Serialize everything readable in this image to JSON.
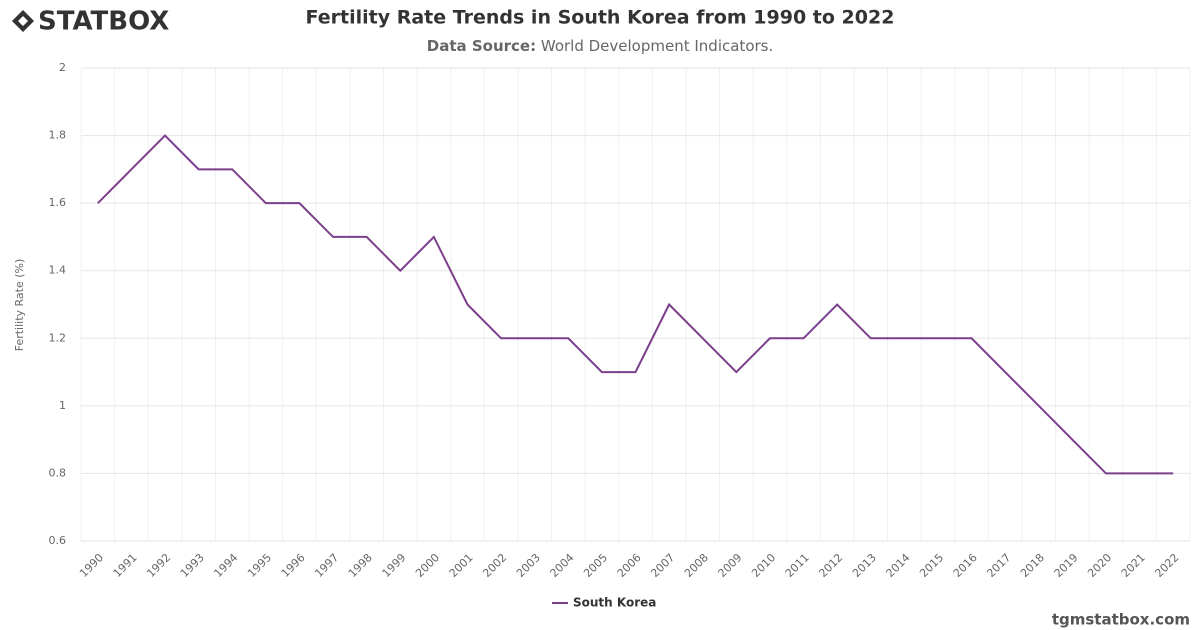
{
  "logo": "STATBOX",
  "footer": "tgmstatbox.com",
  "chart_data": {
    "type": "line",
    "title": "Fertility Rate Trends in South Korea from 1990 to 2022",
    "subtitle_label": "Data Source:",
    "subtitle_value": "World Development Indicators.",
    "y_label": "Fertility Rate (%)",
    "categories": [
      "1990",
      "1991",
      "1992",
      "1993",
      "1994",
      "1995",
      "1996",
      "1997",
      "1998",
      "1999",
      "2000",
      "2001",
      "2002",
      "2003",
      "2004",
      "2005",
      "2006",
      "2007",
      "2008",
      "2009",
      "2010",
      "2011",
      "2012",
      "2013",
      "2014",
      "2015",
      "2016",
      "2017",
      "2018",
      "2019",
      "2020",
      "2021",
      "2022"
    ],
    "series": [
      {
        "name": "South Korea",
        "color": "#7b3f8c",
        "values": [
          1.6,
          1.7,
          1.8,
          1.7,
          1.7,
          1.6,
          1.6,
          1.5,
          1.5,
          1.4,
          1.5,
          1.3,
          1.2,
          1.2,
          1.2,
          1.1,
          1.1,
          1.3,
          1.2,
          1.1,
          1.2,
          1.2,
          1.3,
          1.2,
          1.2,
          1.2,
          1.2,
          1.1,
          1.0,
          0.9,
          0.8,
          0.8,
          0.8
        ]
      }
    ],
    "ylim": [
      0.6,
      2
    ],
    "yticks": [
      0.6,
      0.8,
      1,
      1.2,
      1.4,
      1.6,
      1.8,
      2
    ],
    "grid": true,
    "legend": "bottom"
  }
}
